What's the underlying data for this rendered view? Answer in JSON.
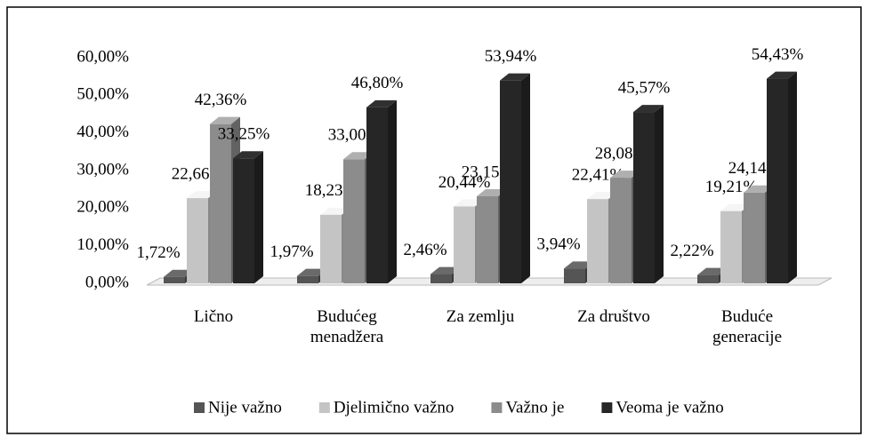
{
  "chart_data": {
    "type": "bar3d",
    "categories": [
      "Lično",
      "Budućeg menadžera",
      "Za zemlju",
      "Za društvo",
      "Buduće generacije"
    ],
    "series": [
      {
        "name": "Nije važno",
        "color": "#555555",
        "values": [
          1.72,
          1.97,
          2.46,
          3.94,
          2.22
        ],
        "value_labels": [
          "1,72%",
          "1,97%",
          "2,46%",
          "3,94%",
          "2,22%"
        ]
      },
      {
        "name": "Djelimično važno",
        "color": "#c4c4c4",
        "values": [
          22.66,
          18.23,
          20.44,
          22.41,
          19.21
        ],
        "value_labels": [
          "22,66%",
          "18,23%",
          "20,44%",
          "22,41%",
          "19,21%"
        ]
      },
      {
        "name": "Važno je",
        "color": "#8c8c8c",
        "values": [
          42.36,
          33.0,
          23.15,
          28.08,
          24.14
        ],
        "value_labels": [
          "42,36%",
          "33,00%",
          "23,15%",
          "28,08%",
          "24,14%"
        ]
      },
      {
        "name": "Veoma je važno",
        "color": "#262626",
        "values": [
          33.25,
          46.8,
          53.94,
          45.57,
          54.43
        ],
        "value_labels": [
          "33,25%",
          "46,80%",
          "53,94%",
          "45,57%",
          "54,43%"
        ]
      }
    ],
    "ylim": [
      0,
      60
    ],
    "yticks": [
      {
        "value": 0,
        "label": "0,00%"
      },
      {
        "value": 10,
        "label": "10,00%"
      },
      {
        "value": 20,
        "label": "20,00%"
      },
      {
        "value": 30,
        "label": "30,00%"
      },
      {
        "value": 40,
        "label": "40,00%"
      },
      {
        "value": 50,
        "label": "50,00%"
      },
      {
        "value": 60,
        "label": "60,00%"
      }
    ],
    "legend": "bottom"
  }
}
